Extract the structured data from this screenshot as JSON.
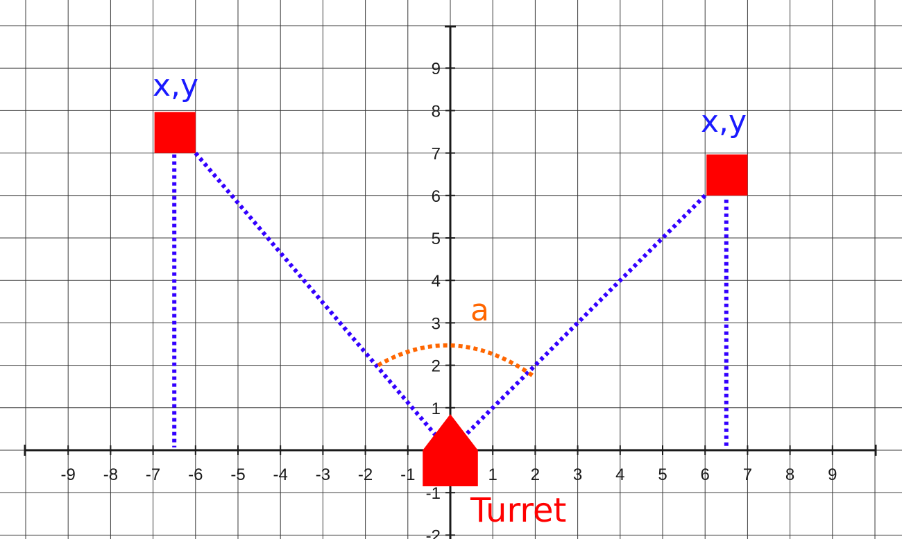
{
  "diagram": {
    "x_range": [
      -10,
      10
    ],
    "y_range": [
      -2,
      10
    ],
    "x_tick_labels": [
      "-9",
      "-8",
      "-7",
      "-6",
      "-5",
      "-4",
      "-3",
      "-2",
      "-1",
      "1",
      "2",
      "3",
      "4",
      "5",
      "6",
      "7",
      "8",
      "9"
    ],
    "y_tick_labels": [
      "9",
      "8",
      "7",
      "6",
      "5",
      "4",
      "3",
      "2",
      "1",
      "-1",
      "-2"
    ],
    "targets": [
      {
        "label": "x,y",
        "x": -6.5,
        "y": 7.5,
        "box": [
          -7,
          7,
          -6,
          8
        ]
      },
      {
        "label": "x,y",
        "x": 6.5,
        "y": 6.5,
        "box": [
          6,
          6,
          7,
          7
        ]
      }
    ],
    "turret": {
      "label": "Turret",
      "x": 0,
      "y": 0
    },
    "angle": {
      "label": "a"
    },
    "colors": {
      "target": "#ff0000",
      "sight_line": "#3300ff",
      "angle_arc": "#ff6600",
      "xy_text": "#1a1aff",
      "turret_text": "#ff0000"
    }
  }
}
